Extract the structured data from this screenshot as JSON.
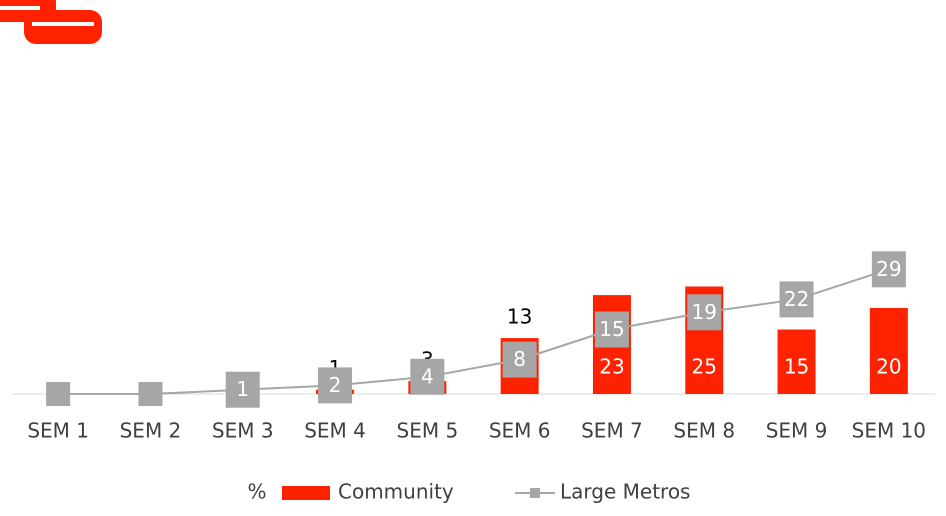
{
  "chart_data": {
    "type": "bar",
    "categories": [
      "SEM 1",
      "SEM 2",
      "SEM 3",
      "SEM 4",
      "SEM 5",
      "SEM 6",
      "SEM 7",
      "SEM 8",
      "SEM 9",
      "SEM 10"
    ],
    "unit_label": "%",
    "series": [
      {
        "name": "Community",
        "type": "bar",
        "color": "#ff2200",
        "values": [
          null,
          null,
          null,
          1,
          3,
          13,
          23,
          25,
          15,
          20
        ]
      },
      {
        "name": "Large Metros",
        "type": "line",
        "color": "#a6a6a6",
        "values": [
          0,
          0,
          1,
          2,
          4,
          8,
          15,
          19,
          22,
          29
        ],
        "value_labels": [
          null,
          null,
          "1",
          "2",
          "4",
          "8",
          "15",
          "19",
          "22",
          "29"
        ]
      }
    ],
    "ylim": [
      0,
      30
    ],
    "legend": "bottom"
  }
}
